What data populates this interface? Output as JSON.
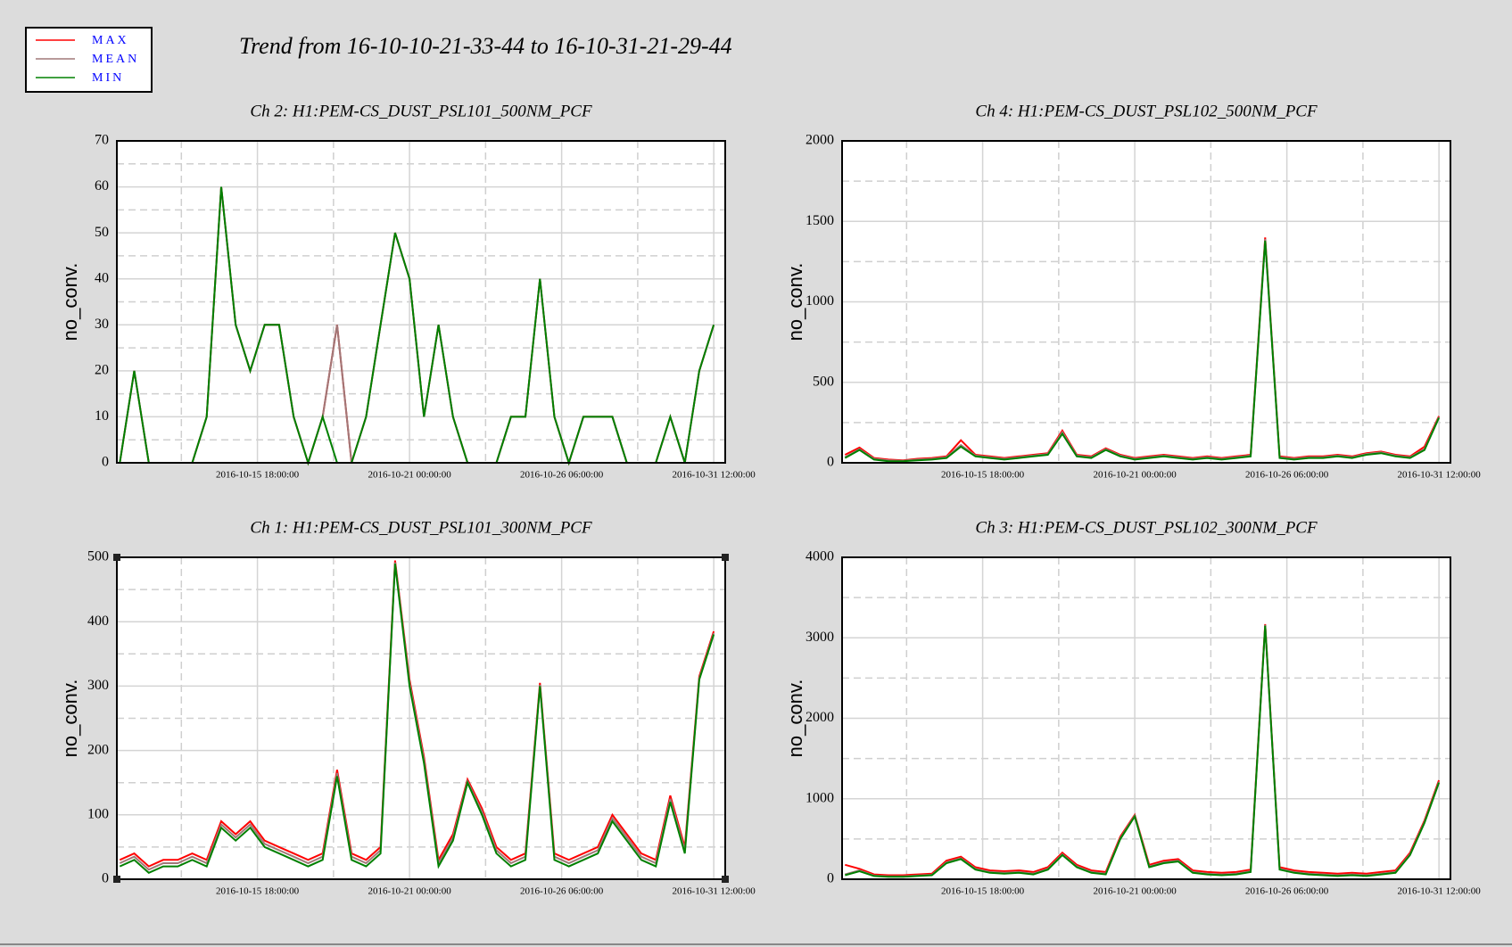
{
  "title": "Trend from 16-10-10-21-33-44 to 16-10-31-21-29-44",
  "legend": [
    {
      "name": "MAX",
      "color": "#ff0000"
    },
    {
      "name": "MEAN",
      "color": "#a07878"
    },
    {
      "name": "MIN",
      "color": "#008000"
    }
  ],
  "chart_data": [
    {
      "type": "line",
      "title": "Ch 2: H1:PEM-CS_DUST_PSL101_500NM_PCF",
      "ylabel": "no_conv.",
      "xlim": [
        "2016-10-10 21:33:44",
        "2016-10-31 21:29:44"
      ],
      "xticks": [
        "2016-10-15 18:00:00",
        "2016-10-21 00:00:00",
        "2016-10-26 06:00:00",
        "2016-10-31 12:00:00"
      ],
      "xminorticks": [
        "2016-10-13 03:00:00",
        "2016-10-18 09:00:00",
        "2016-10-23 15:00:00",
        "2016-10-28 21:00:00"
      ],
      "ylim": [
        0,
        70
      ],
      "yticks": [
        0,
        10,
        20,
        30,
        40,
        50,
        60,
        70
      ],
      "yminorticks": [
        5,
        15,
        25,
        35,
        45,
        55,
        65
      ],
      "x": [
        "2016-10-11 00:00:00",
        "2016-10-11 12:00:00",
        "2016-10-12 00:00:00",
        "2016-10-12 12:00:00",
        "2016-10-13 00:00:00",
        "2016-10-13 12:00:00",
        "2016-10-14 00:00:00",
        "2016-10-14 12:00:00",
        "2016-10-15 00:00:00",
        "2016-10-15 12:00:00",
        "2016-10-16 00:00:00",
        "2016-10-16 12:00:00",
        "2016-10-17 00:00:00",
        "2016-10-17 12:00:00",
        "2016-10-18 00:00:00",
        "2016-10-18 12:00:00",
        "2016-10-19 00:00:00",
        "2016-10-19 12:00:00",
        "2016-10-20 00:00:00",
        "2016-10-20 12:00:00",
        "2016-10-21 00:00:00",
        "2016-10-21 12:00:00",
        "2016-10-22 00:00:00",
        "2016-10-22 12:00:00",
        "2016-10-23 00:00:00",
        "2016-10-23 12:00:00",
        "2016-10-24 00:00:00",
        "2016-10-24 12:00:00",
        "2016-10-25 00:00:00",
        "2016-10-25 12:00:00",
        "2016-10-26 00:00:00",
        "2016-10-26 12:00:00",
        "2016-10-27 00:00:00",
        "2016-10-27 12:00:00",
        "2016-10-28 00:00:00",
        "2016-10-28 12:00:00",
        "2016-10-29 00:00:00",
        "2016-10-29 12:00:00",
        "2016-10-30 00:00:00",
        "2016-10-30 12:00:00",
        "2016-10-31 00:00:00",
        "2016-10-31 12:00:00"
      ],
      "series": [
        {
          "values": [
            0,
            20,
            0,
            0,
            0,
            0,
            10,
            60,
            30,
            20,
            30,
            30,
            10,
            0,
            10,
            30,
            0,
            10,
            30,
            50,
            40,
            10,
            30,
            10,
            0,
            0,
            0,
            10,
            10,
            40,
            10,
            0,
            10,
            10,
            10,
            0,
            0,
            0,
            10,
            0,
            20,
            30
          ]
        },
        {
          "values": [
            0,
            20,
            0,
            0,
            0,
            0,
            10,
            60,
            30,
            20,
            30,
            30,
            10,
            0,
            10,
            30,
            0,
            10,
            30,
            50,
            40,
            10,
            30,
            10,
            0,
            0,
            0,
            10,
            10,
            40,
            10,
            0,
            10,
            10,
            10,
            0,
            0,
            0,
            10,
            0,
            20,
            30
          ]
        },
        {
          "values": [
            0,
            20,
            0,
            0,
            0,
            0,
            10,
            60,
            30,
            20,
            30,
            30,
            10,
            0,
            10,
            0,
            0,
            10,
            30,
            50,
            40,
            10,
            30,
            10,
            0,
            0,
            0,
            10,
            10,
            40,
            10,
            0,
            10,
            10,
            10,
            0,
            0,
            0,
            10,
            0,
            20,
            30
          ]
        }
      ]
    },
    {
      "type": "line",
      "title": "Ch 4: H1:PEM-CS_DUST_PSL102_500NM_PCF",
      "ylabel": "no_conv.",
      "xlim": [
        "2016-10-10 21:33:44",
        "2016-10-31 21:29:44"
      ],
      "xticks": [
        "2016-10-15 18:00:00",
        "2016-10-21 00:00:00",
        "2016-10-26 06:00:00",
        "2016-10-31 12:00:00"
      ],
      "xminorticks": [
        "2016-10-13 03:00:00",
        "2016-10-18 09:00:00",
        "2016-10-23 15:00:00",
        "2016-10-28 21:00:00"
      ],
      "ylim": [
        0,
        2000
      ],
      "yticks": [
        0,
        500,
        1000,
        1500,
        2000
      ],
      "yminorticks": [
        250,
        750,
        1250,
        1750
      ],
      "x": [
        "2016-10-11 00:00:00",
        "2016-10-11 12:00:00",
        "2016-10-12 00:00:00",
        "2016-10-12 12:00:00",
        "2016-10-13 00:00:00",
        "2016-10-13 12:00:00",
        "2016-10-14 00:00:00",
        "2016-10-14 12:00:00",
        "2016-10-15 00:00:00",
        "2016-10-15 12:00:00",
        "2016-10-16 00:00:00",
        "2016-10-16 12:00:00",
        "2016-10-17 00:00:00",
        "2016-10-17 12:00:00",
        "2016-10-18 00:00:00",
        "2016-10-18 12:00:00",
        "2016-10-19 00:00:00",
        "2016-10-19 12:00:00",
        "2016-10-20 00:00:00",
        "2016-10-20 12:00:00",
        "2016-10-21 00:00:00",
        "2016-10-21 12:00:00",
        "2016-10-22 00:00:00",
        "2016-10-22 12:00:00",
        "2016-10-23 00:00:00",
        "2016-10-23 12:00:00",
        "2016-10-24 00:00:00",
        "2016-10-24 12:00:00",
        "2016-10-25 00:00:00",
        "2016-10-25 12:00:00",
        "2016-10-26 00:00:00",
        "2016-10-26 12:00:00",
        "2016-10-27 00:00:00",
        "2016-10-27 12:00:00",
        "2016-10-28 00:00:00",
        "2016-10-28 12:00:00",
        "2016-10-29 00:00:00",
        "2016-10-29 12:00:00",
        "2016-10-30 00:00:00",
        "2016-10-30 12:00:00",
        "2016-10-31 00:00:00",
        "2016-10-31 12:00:00"
      ],
      "series": [
        {
          "values": [
            50,
            95,
            30,
            20,
            15,
            25,
            30,
            40,
            140,
            50,
            40,
            30,
            40,
            50,
            60,
            200,
            50,
            40,
            90,
            50,
            30,
            40,
            50,
            40,
            30,
            40,
            30,
            40,
            50,
            1400,
            40,
            30,
            40,
            40,
            50,
            40,
            60,
            70,
            50,
            40,
            100,
            290
          ]
        },
        {
          "values": [
            35,
            85,
            25,
            15,
            12,
            20,
            25,
            35,
            110,
            45,
            35,
            25,
            35,
            45,
            55,
            190,
            45,
            35,
            85,
            45,
            25,
            35,
            45,
            35,
            25,
            35,
            25,
            35,
            45,
            1390,
            35,
            25,
            35,
            35,
            45,
            35,
            55,
            65,
            45,
            35,
            85,
            285
          ]
        },
        {
          "values": [
            30,
            80,
            20,
            10,
            10,
            15,
            20,
            30,
            100,
            40,
            30,
            20,
            30,
            40,
            50,
            180,
            40,
            30,
            80,
            40,
            20,
            30,
            40,
            30,
            20,
            30,
            20,
            30,
            40,
            1380,
            30,
            20,
            30,
            30,
            40,
            30,
            50,
            60,
            40,
            30,
            80,
            280
          ]
        }
      ]
    },
    {
      "type": "line",
      "title": "Ch 1: H1:PEM-CS_DUST_PSL101_300NM_PCF",
      "ylabel": "no_conv.",
      "xlim": [
        "2016-10-10 21:33:44",
        "2016-10-31 21:29:44"
      ],
      "xticks": [
        "2016-10-15 18:00:00",
        "2016-10-21 00:00:00",
        "2016-10-26 06:00:00",
        "2016-10-31 12:00:00"
      ],
      "xminorticks": [
        "2016-10-13 03:00:00",
        "2016-10-18 09:00:00",
        "2016-10-23 15:00:00",
        "2016-10-28 21:00:00"
      ],
      "ylim": [
        0,
        500
      ],
      "yticks": [
        0,
        100,
        200,
        300,
        400,
        500
      ],
      "yminorticks": [
        50,
        150,
        250,
        350,
        450
      ],
      "x": [
        "2016-10-11 00:00:00",
        "2016-10-11 12:00:00",
        "2016-10-12 00:00:00",
        "2016-10-12 12:00:00",
        "2016-10-13 00:00:00",
        "2016-10-13 12:00:00",
        "2016-10-14 00:00:00",
        "2016-10-14 12:00:00",
        "2016-10-15 00:00:00",
        "2016-10-15 12:00:00",
        "2016-10-16 00:00:00",
        "2016-10-16 12:00:00",
        "2016-10-17 00:00:00",
        "2016-10-17 12:00:00",
        "2016-10-18 00:00:00",
        "2016-10-18 12:00:00",
        "2016-10-19 00:00:00",
        "2016-10-19 12:00:00",
        "2016-10-20 00:00:00",
        "2016-10-20 12:00:00",
        "2016-10-21 00:00:00",
        "2016-10-21 12:00:00",
        "2016-10-22 00:00:00",
        "2016-10-22 12:00:00",
        "2016-10-23 00:00:00",
        "2016-10-23 12:00:00",
        "2016-10-24 00:00:00",
        "2016-10-24 12:00:00",
        "2016-10-25 00:00:00",
        "2016-10-25 12:00:00",
        "2016-10-26 00:00:00",
        "2016-10-26 12:00:00",
        "2016-10-27 00:00:00",
        "2016-10-27 12:00:00",
        "2016-10-28 00:00:00",
        "2016-10-28 12:00:00",
        "2016-10-29 00:00:00",
        "2016-10-29 12:00:00",
        "2016-10-30 00:00:00",
        "2016-10-30 12:00:00",
        "2016-10-31 00:00:00",
        "2016-10-31 12:00:00"
      ],
      "series": [
        {
          "values": [
            30,
            40,
            20,
            30,
            30,
            40,
            30,
            90,
            70,
            90,
            60,
            50,
            40,
            30,
            40,
            170,
            40,
            30,
            50,
            495,
            310,
            190,
            30,
            70,
            155,
            110,
            50,
            30,
            40,
            305,
            40,
            30,
            40,
            50,
            100,
            70,
            40,
            30,
            130,
            50,
            315,
            385
          ]
        },
        {
          "values": [
            25,
            35,
            15,
            25,
            25,
            35,
            25,
            85,
            65,
            85,
            55,
            45,
            35,
            25,
            35,
            165,
            35,
            25,
            45,
            492,
            305,
            185,
            25,
            65,
            152,
            105,
            45,
            25,
            35,
            302,
            35,
            25,
            35,
            45,
            95,
            65,
            35,
            25,
            125,
            45,
            312,
            382
          ]
        },
        {
          "values": [
            20,
            30,
            10,
            20,
            20,
            30,
            20,
            80,
            60,
            80,
            50,
            40,
            30,
            20,
            30,
            160,
            30,
            20,
            40,
            490,
            300,
            180,
            20,
            60,
            150,
            100,
            40,
            20,
            30,
            300,
            30,
            20,
            30,
            40,
            90,
            60,
            30,
            20,
            120,
            40,
            310,
            380
          ]
        }
      ]
    },
    {
      "type": "line",
      "title": "Ch 3: H1:PEM-CS_DUST_PSL102_300NM_PCF",
      "ylabel": "no_conv.",
      "xlim": [
        "2016-10-10 21:33:44",
        "2016-10-31 21:29:44"
      ],
      "xticks": [
        "2016-10-15 18:00:00",
        "2016-10-21 00:00:00",
        "2016-10-26 06:00:00",
        "2016-10-31 12:00:00"
      ],
      "xminorticks": [
        "2016-10-13 03:00:00",
        "2016-10-18 09:00:00",
        "2016-10-23 15:00:00",
        "2016-10-28 21:00:00"
      ],
      "ylim": [
        0,
        4000
      ],
      "yticks": [
        0,
        1000,
        2000,
        3000,
        4000
      ],
      "yminorticks": [
        500,
        1500,
        2500,
        3500
      ],
      "x": [
        "2016-10-11 00:00:00",
        "2016-10-11 12:00:00",
        "2016-10-12 00:00:00",
        "2016-10-12 12:00:00",
        "2016-10-13 00:00:00",
        "2016-10-13 12:00:00",
        "2016-10-14 00:00:00",
        "2016-10-14 12:00:00",
        "2016-10-15 00:00:00",
        "2016-10-15 12:00:00",
        "2016-10-16 00:00:00",
        "2016-10-16 12:00:00",
        "2016-10-17 00:00:00",
        "2016-10-17 12:00:00",
        "2016-10-18 00:00:00",
        "2016-10-18 12:00:00",
        "2016-10-19 00:00:00",
        "2016-10-19 12:00:00",
        "2016-10-20 00:00:00",
        "2016-10-20 12:00:00",
        "2016-10-21 00:00:00",
        "2016-10-21 12:00:00",
        "2016-10-22 00:00:00",
        "2016-10-22 12:00:00",
        "2016-10-23 00:00:00",
        "2016-10-23 12:00:00",
        "2016-10-24 00:00:00",
        "2016-10-24 12:00:00",
        "2016-10-25 00:00:00",
        "2016-10-25 12:00:00",
        "2016-10-26 00:00:00",
        "2016-10-26 12:00:00",
        "2016-10-27 00:00:00",
        "2016-10-27 12:00:00",
        "2016-10-28 00:00:00",
        "2016-10-28 12:00:00",
        "2016-10-29 00:00:00",
        "2016-10-29 12:00:00",
        "2016-10-30 00:00:00",
        "2016-10-30 12:00:00",
        "2016-10-31 00:00:00",
        "2016-10-31 12:00:00"
      ],
      "series": [
        {
          "values": [
            180,
            130,
            60,
            50,
            50,
            60,
            70,
            230,
            280,
            150,
            110,
            100,
            110,
            90,
            150,
            330,
            180,
            110,
            90,
            530,
            800,
            180,
            230,
            250,
            110,
            90,
            80,
            90,
            120,
            3170,
            150,
            110,
            90,
            80,
            70,
            80,
            70,
            90,
            110,
            330,
            730,
            1230
          ]
        },
        {
          "values": [
            60,
            110,
            45,
            35,
            35,
            45,
            55,
            210,
            260,
            130,
            90,
            80,
            90,
            70,
            130,
            310,
            160,
            90,
            70,
            510,
            790,
            160,
            210,
            230,
            90,
            70,
            60,
            70,
            100,
            3160,
            130,
            90,
            70,
            60,
            50,
            60,
            50,
            70,
            90,
            310,
            710,
            1210
          ]
        },
        {
          "values": [
            50,
            100,
            40,
            30,
            30,
            40,
            50,
            200,
            250,
            120,
            80,
            70,
            80,
            60,
            120,
            300,
            150,
            80,
            60,
            500,
            780,
            150,
            200,
            220,
            80,
            60,
            50,
            60,
            90,
            3150,
            120,
            80,
            60,
            50,
            40,
            50,
            40,
            60,
            80,
            300,
            700,
            1200
          ]
        }
      ]
    }
  ]
}
